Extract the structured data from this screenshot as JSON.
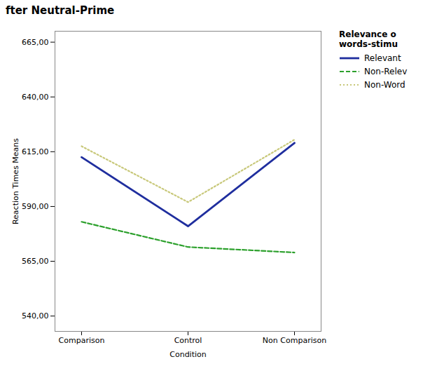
{
  "chart_data": {
    "type": "line",
    "title": "fter Neutral-Prime",
    "xlabel": "Condition",
    "ylabel": "Reaction Times Means",
    "categories": [
      "Comparison",
      "Control",
      "Non Comparison"
    ],
    "series": [
      {
        "name": "Relevant",
        "color": "#1f2e9e",
        "line_style": "solid",
        "values": [
          612.5,
          581.0,
          619.0
        ]
      },
      {
        "name": "Non-Relev",
        "color": "#2ca02c",
        "line_style": "dashed",
        "values": [
          583.0,
          571.5,
          569.0
        ]
      },
      {
        "name": "Non-Word",
        "color": "#c8c87a",
        "line_style": "dotted",
        "values": [
          617.5,
          592.0,
          620.5
        ]
      }
    ],
    "legend_title": "Relevance o\nwords-stimu",
    "ylim": [
      533,
      670
    ],
    "yticks": [
      {
        "value": 540.0,
        "label": "540,00"
      },
      {
        "value": 565.0,
        "label": "565,00"
      },
      {
        "value": 590.0,
        "label": "590,00"
      },
      {
        "value": 615.0,
        "label": "615,00"
      },
      {
        "value": 640.0,
        "label": "640,00"
      },
      {
        "value": 665.0,
        "label": "665,00"
      }
    ],
    "grid": false,
    "legend": "right"
  }
}
